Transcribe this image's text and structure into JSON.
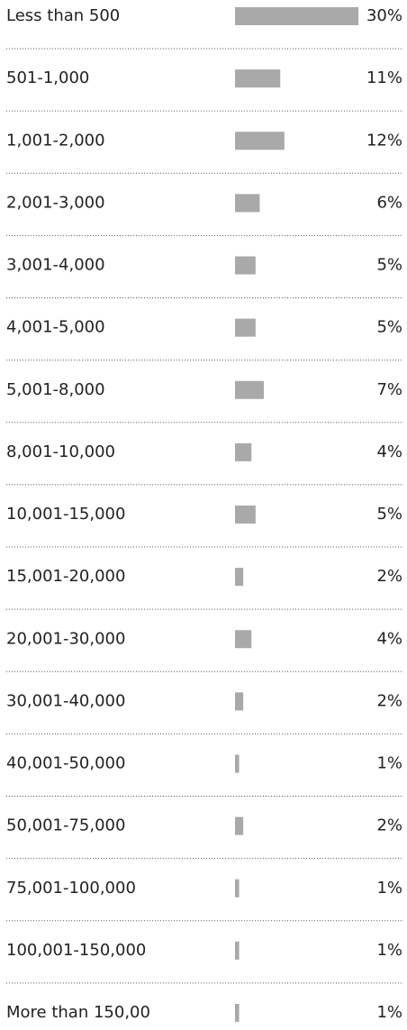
{
  "chart_data": {
    "type": "bar",
    "orientation": "horizontal",
    "categories": [
      "Less than 500",
      "501-1,000",
      "1,001-2,000",
      "2,001-3,000",
      "3,001-4,000",
      "4,001-5,000",
      "5,001-8,000",
      "8,001-10,000",
      "10,001-15,000",
      "15,001-20,000",
      "20,001-30,000",
      "30,001-40,000",
      "40,001-50,000",
      "50,001-75,000",
      "75,001-100,000",
      "100,001-150,000",
      "More than 150,00"
    ],
    "values": [
      30,
      11,
      12,
      6,
      5,
      5,
      7,
      4,
      5,
      2,
      4,
      2,
      1,
      2,
      1,
      1,
      1
    ],
    "value_labels": [
      "30%",
      "11%",
      "12%",
      "6%",
      "5%",
      "5%",
      "7%",
      "4%",
      "5%",
      "2%",
      "4%",
      "2%",
      "1%",
      "2%",
      "1%",
      "1%",
      "1%"
    ],
    "color": "#a9a9a9"
  }
}
